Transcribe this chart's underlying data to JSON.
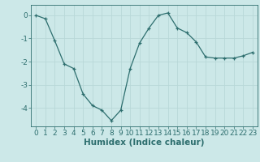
{
  "x": [
    0,
    1,
    2,
    3,
    4,
    5,
    6,
    7,
    8,
    9,
    10,
    11,
    12,
    13,
    14,
    15,
    16,
    17,
    18,
    19,
    20,
    21,
    22,
    23
  ],
  "y": [
    0.0,
    -0.15,
    -1.1,
    -2.1,
    -2.3,
    -3.4,
    -3.9,
    -4.1,
    -4.55,
    -4.1,
    -2.3,
    -1.2,
    -0.55,
    0.0,
    0.1,
    -0.55,
    -0.75,
    -1.15,
    -1.8,
    -1.85,
    -1.85,
    -1.85,
    -1.75,
    -1.6
  ],
  "line_color": "#2d6e6e",
  "marker": "+",
  "marker_size": 3,
  "bg_color": "#cce8e8",
  "grid_color": "#b8d8d8",
  "xlabel": "Humidex (Indice chaleur)",
  "xlim": [
    -0.5,
    23.5
  ],
  "ylim": [
    -4.8,
    0.45
  ],
  "yticks": [
    0,
    -1,
    -2,
    -3,
    -4
  ],
  "xticks": [
    0,
    1,
    2,
    3,
    4,
    5,
    6,
    7,
    8,
    9,
    10,
    11,
    12,
    13,
    14,
    15,
    16,
    17,
    18,
    19,
    20,
    21,
    22,
    23
  ],
  "tick_color": "#2d6e6e",
  "label_color": "#2d6e6e",
  "font_size": 6.5,
  "xlabel_fontsize": 7.5,
  "linewidth": 0.9
}
